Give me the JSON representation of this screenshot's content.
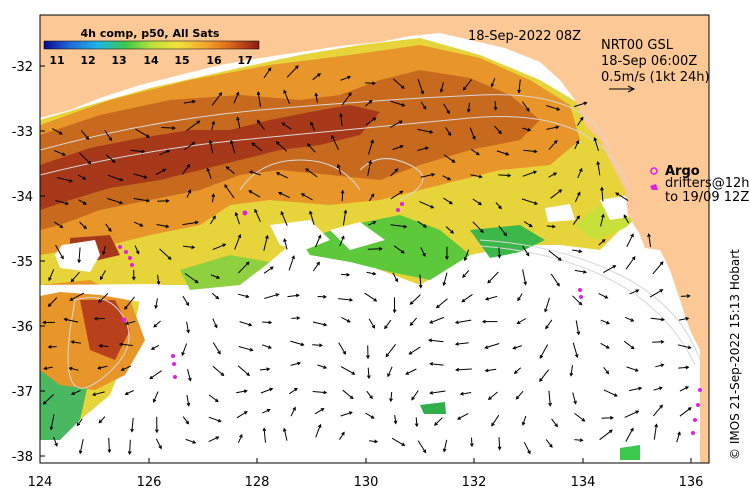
{
  "header": {
    "colorbar_title": "4h comp, p50, All Sats",
    "timestamp": "18-Sep-2022 08Z"
  },
  "colorbar": {
    "ticks": [
      "11",
      "12",
      "13",
      "14",
      "15",
      "16",
      "17"
    ],
    "colors": [
      "#0a0a90",
      "#1f6ad8",
      "#1fb4e8",
      "#3cc84c",
      "#b8e23a",
      "#f2e23a",
      "#f2a72c",
      "#e0701c",
      "#b8401a",
      "#8a1a14"
    ]
  },
  "current_panel": {
    "line1": "NRT00 GSL",
    "line2": "18-Sep 06:00Z",
    "line3": "0.5m/s (1kt 24h)"
  },
  "legend": {
    "argo": "Argo",
    "drifters": "drifters@12h",
    "drifters_to": "to 19/09 12Z"
  },
  "axes": {
    "x_ticks": [
      "124",
      "126",
      "128",
      "130",
      "132",
      "134",
      "136"
    ],
    "y_ticks": [
      "-32",
      "-33",
      "-34",
      "-35",
      "-36",
      "-37",
      "-38"
    ]
  },
  "credit": "© IMOS 21-Sep-2022 15:13 Hobart",
  "colors": {
    "land": "#fbc896",
    "frame": "#000000",
    "argo": "#e020e0"
  }
}
